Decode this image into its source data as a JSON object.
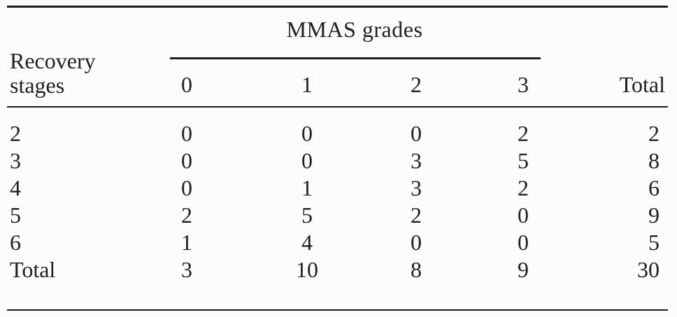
{
  "table": {
    "group_header": "MMAS grades",
    "stub_header": {
      "line1": "Recovery",
      "line2": "stages"
    },
    "col_headers": [
      "0",
      "1",
      "2",
      "3"
    ],
    "total_header": "Total",
    "rows": [
      {
        "label": "2",
        "cells": [
          "0",
          "0",
          "0",
          "2"
        ],
        "total": "2"
      },
      {
        "label": "3",
        "cells": [
          "0",
          "0",
          "3",
          "5"
        ],
        "total": "8"
      },
      {
        "label": "4",
        "cells": [
          "0",
          "1",
          "3",
          "2"
        ],
        "total": "6"
      },
      {
        "label": "5",
        "cells": [
          "2",
          "5",
          "2",
          "0"
        ],
        "total": "9"
      },
      {
        "label": "6",
        "cells": [
          "1",
          "4",
          "0",
          "0"
        ],
        "total": "5"
      },
      {
        "label": "Total",
        "cells": [
          "3",
          "10",
          "8",
          "9"
        ],
        "total": "30"
      }
    ],
    "colors": {
      "rule": "#1c1c1c",
      "text": "#202020",
      "background": "#fcfcfc"
    }
  }
}
